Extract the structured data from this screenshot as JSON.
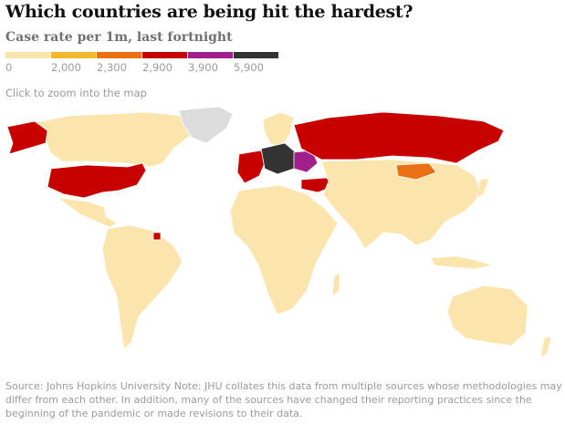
{
  "header": {
    "title": "Which countries are being hit the hardest?",
    "subtitle": "Case rate per 1m, last fortnight"
  },
  "legend": {
    "items": [
      {
        "label": "0",
        "color": "#fbe5ad"
      },
      {
        "label": "2,000",
        "color": "#f1b82e"
      },
      {
        "label": "2,300",
        "color": "#ea7014"
      },
      {
        "label": "2,900",
        "color": "#c70000"
      },
      {
        "label": "3,900",
        "color": "#a01f8a"
      },
      {
        "label": "5,900",
        "color": "#333333"
      }
    ]
  },
  "hint": "Click to zoom into the map",
  "map": {
    "no_data_color": "#dcdcdc",
    "country_classes": {
      "north_america": "#fbe5ad",
      "united_states": "#c70000",
      "alaska": "#c70000",
      "greenland": "#dcdcdc",
      "latin_america": "#fbe5ad",
      "french_guiana": "#c70000",
      "africa": "#fbe5ad",
      "russia": "#c70000",
      "mongolia": "#ea7014",
      "asia": "#fbe5ad",
      "australia": "#fbe5ad",
      "western_europe": "#c70000",
      "central_europe": "#333333",
      "eastern_europe": "#a01f8a",
      "scandinavia": "#fbe5ad",
      "turkey": "#c70000"
    }
  },
  "footer": {
    "source": "Source: Johns Hopkins University Note: JHU collates this data from multiple sources whose methodologies may differ from each other. In addition, many of the sources have changed their reporting practices since the beginning of the pandemic or made revisions to their data."
  }
}
